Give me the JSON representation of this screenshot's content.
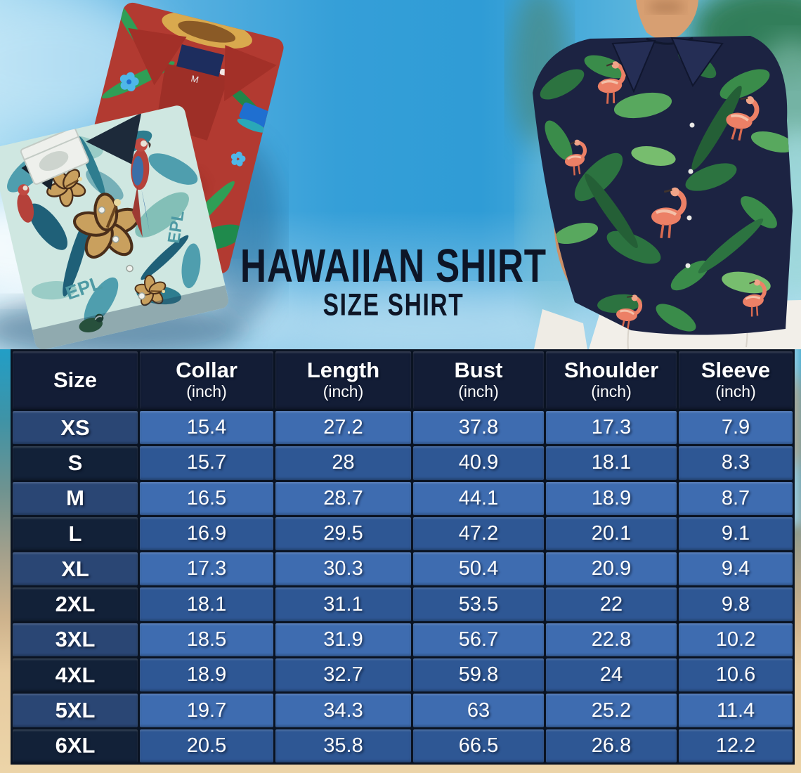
{
  "title": {
    "main": "HAWAIIAN SHIRT",
    "sub": "SIZE SHIRT"
  },
  "size_table": {
    "columns": [
      {
        "label": "Size",
        "unit": ""
      },
      {
        "label": "Collar",
        "unit": "(inch)"
      },
      {
        "label": "Length",
        "unit": "(inch)"
      },
      {
        "label": "Bust",
        "unit": "(inch)"
      },
      {
        "label": "Shoulder",
        "unit": "(inch)"
      },
      {
        "label": "Sleeve",
        "unit": "(inch)"
      }
    ],
    "rows": [
      {
        "size": "XS",
        "values": [
          "15.4",
          "27.2",
          "37.8",
          "17.3",
          "7.9"
        ]
      },
      {
        "size": "S",
        "values": [
          "15.7",
          "28",
          "40.9",
          "18.1",
          "8.3"
        ]
      },
      {
        "size": "M",
        "values": [
          "16.5",
          "28.7",
          "44.1",
          "18.9",
          "8.7"
        ]
      },
      {
        "size": "L",
        "values": [
          "16.9",
          "29.5",
          "47.2",
          "20.1",
          "9.1"
        ]
      },
      {
        "size": "XL",
        "values": [
          "17.3",
          "30.3",
          "50.4",
          "20.9",
          "9.4"
        ]
      },
      {
        "size": "2XL",
        "values": [
          "18.1",
          "31.1",
          "53.5",
          "22",
          "9.8"
        ]
      },
      {
        "size": "3XL",
        "values": [
          "18.5",
          "31.9",
          "56.7",
          "22.8",
          "10.2"
        ]
      },
      {
        "size": "4XL",
        "values": [
          "18.9",
          "32.7",
          "59.8",
          "24",
          "10.6"
        ]
      },
      {
        "size": "5XL",
        "values": [
          "19.7",
          "34.3",
          "63",
          "25.2",
          "11.4"
        ]
      },
      {
        "size": "6XL",
        "values": [
          "20.5",
          "35.8",
          "66.5",
          "26.8",
          "12.2"
        ]
      }
    ]
  },
  "photos": {
    "left_shirts": {
      "collar_tag": "M",
      "print_text": "EPL"
    },
    "right_model": {}
  },
  "colors": {
    "header_bg": "#131d36",
    "row_odd_size": "#2a4674",
    "row_odd_value": "#3e6cb0",
    "row_even_size": "#122138",
    "row_even_value": "#2e5794",
    "grid": "#0a1322",
    "table_text": "#ffffff",
    "title": "#0d1526",
    "sky_blue": "#3aa2da",
    "sand": "#e9cfa2",
    "shirt_red": "#b23a31",
    "shirt_teal_base": "#cfe7e1",
    "shirt_navy": "#1c2342",
    "leaf_green": "#3a8c4a",
    "flamingo_pink": "#ee7f63",
    "skin_tone": "#cd9067"
  },
  "chart_data": {
    "type": "table",
    "title": "Hawaiian Shirt Size Shirt",
    "columns": [
      "Size",
      "Collar (inch)",
      "Length (inch)",
      "Bust (inch)",
      "Shoulder (inch)",
      "Sleeve (inch)"
    ],
    "rows": [
      [
        "XS",
        15.4,
        27.2,
        37.8,
        17.3,
        7.9
      ],
      [
        "S",
        15.7,
        28,
        40.9,
        18.1,
        8.3
      ],
      [
        "M",
        16.5,
        28.7,
        44.1,
        18.9,
        8.7
      ],
      [
        "L",
        16.9,
        29.5,
        47.2,
        20.1,
        9.1
      ],
      [
        "XL",
        17.3,
        30.3,
        50.4,
        20.9,
        9.4
      ],
      [
        "2XL",
        18.1,
        31.1,
        53.5,
        22,
        9.8
      ],
      [
        "3XL",
        18.5,
        31.9,
        56.7,
        22.8,
        10.2
      ],
      [
        "4XL",
        18.9,
        32.7,
        59.8,
        24,
        10.6
      ],
      [
        "5XL",
        19.7,
        34.3,
        63,
        25.2,
        11.4
      ],
      [
        "6XL",
        20.5,
        35.8,
        66.5,
        26.8,
        12.2
      ]
    ]
  }
}
